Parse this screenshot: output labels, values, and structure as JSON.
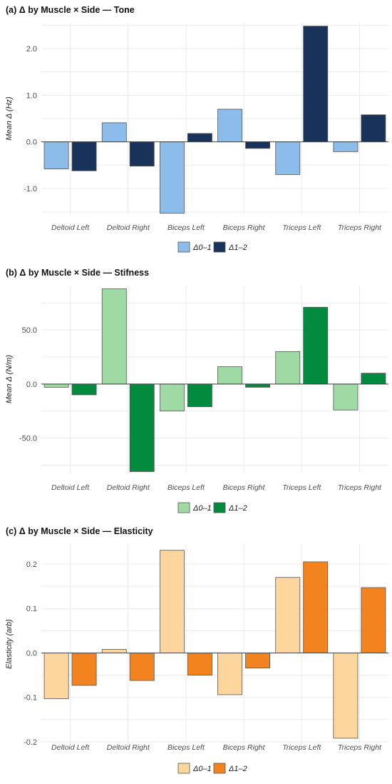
{
  "chart_data": [
    {
      "type": "bar",
      "title": "(a) Δ by Muscle × Side — Tone",
      "xlabel": "",
      "ylabel": "Mean Δ (Hz)",
      "categories": [
        "Deltoid Left",
        "Deltoid Right",
        "Biceps Left",
        "Biceps Right",
        "Triceps Left",
        "Triceps Right"
      ],
      "series": [
        {
          "name": "Δ0–1",
          "color": "#8bbcea",
          "values": [
            -0.58,
            0.41,
            -1.53,
            0.7,
            -0.7,
            -0.21
          ]
        },
        {
          "name": "Δ1–2",
          "color": "#18325a",
          "values": [
            -0.62,
            -0.52,
            0.18,
            -0.14,
            2.48,
            0.58
          ]
        }
      ],
      "ylim": [
        -1.55,
        2.55
      ],
      "yticks": [
        -1.0,
        0.0,
        1.0,
        2.0
      ],
      "ytick_labels": [
        "-1.0",
        "0.0",
        "1.0",
        "2.0"
      ],
      "grid": true,
      "legend_position": "bottom"
    },
    {
      "type": "bar",
      "title": "(b) Δ by Muscle × Side — Stifness",
      "xlabel": "",
      "ylabel": "Mean Δ (N/m)",
      "categories": [
        "Deltoid Left",
        "Deltoid Right",
        "Biceps Left",
        "Biceps Right",
        "Triceps Left",
        "Triceps Right"
      ],
      "series": [
        {
          "name": "Δ0–1",
          "color": "#9fd9a3",
          "values": [
            -3,
            88,
            -25,
            16,
            30,
            -24
          ]
        },
        {
          "name": "Δ1–2",
          "color": "#028a3e",
          "values": [
            -10,
            -81,
            -21,
            -3,
            71,
            10
          ]
        }
      ],
      "ylim": [
        -82,
        91
      ],
      "yticks": [
        -50,
        0,
        50
      ],
      "ytick_labels": [
        "-50.0",
        "0.0",
        "50.0"
      ],
      "grid": true,
      "legend_position": "bottom"
    },
    {
      "type": "bar",
      "title": "(c) Δ by Muscle × Side — Elasticity",
      "xlabel": "",
      "ylabel": "Elasticity (arb)",
      "categories": [
        "Deltoid Left",
        "Deltoid Right",
        "Biceps Left",
        "Biceps Right",
        "Triceps Left",
        "Triceps Right"
      ],
      "series": [
        {
          "name": "Δ0–1",
          "color": "#fdd69e",
          "values": [
            -0.103,
            0.008,
            0.231,
            -0.094,
            0.17,
            -0.192
          ]
        },
        {
          "name": "Δ1–2",
          "color": "#f2831f",
          "values": [
            -0.073,
            -0.062,
            -0.05,
            -0.034,
            0.205,
            0.147
          ]
        }
      ],
      "ylim": [
        -0.205,
        0.245
      ],
      "yticks": [
        -0.2,
        -0.1,
        0.0,
        0.1,
        0.2
      ],
      "ytick_labels": [
        "-0.2",
        "-0.1",
        "0.0",
        "0.1",
        "0.2"
      ],
      "grid": true,
      "legend_position": "bottom"
    }
  ]
}
